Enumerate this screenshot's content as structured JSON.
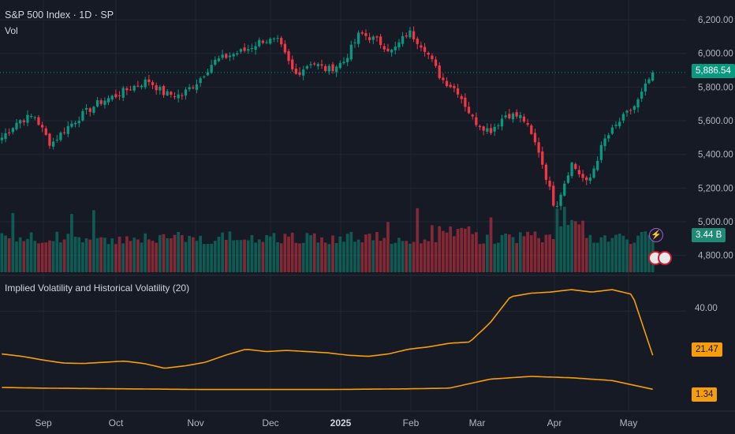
{
  "header": {
    "title": "S&P 500 Index · 1D · SP",
    "volume_label": "Vol",
    "indicator_label": "Implied Volatility and Historical Volatility (20)"
  },
  "price_axis": {
    "ticks": [
      "6,200.00",
      "6,000.00",
      "5,800.00",
      "5,600.00",
      "5,400.00",
      "5,200.00",
      "5,000.00",
      "4,800.00"
    ],
    "current_price": "5,886.54",
    "volume_value": "3.44 B"
  },
  "indicator_axis": {
    "tick": "40.00",
    "iv_value": "21.47",
    "hv_value": "1.34"
  },
  "time_axis": [
    "Sep",
    "Oct",
    "Nov",
    "Dec",
    "2025",
    "Feb",
    "Mar",
    "Apr",
    "May"
  ],
  "colors": {
    "background": "#161a25",
    "up": "#089981",
    "down": "#f23645",
    "line": "#f59d0b",
    "grid": "#232733"
  },
  "chart_data": {
    "type": "candlestick",
    "title": "S&P 500 Index · 1D · SP",
    "ylim": [
      4700,
      6280
    ],
    "anchors": [
      5500,
      5600,
      5630,
      5460,
      5560,
      5640,
      5710,
      5750,
      5800,
      5840,
      5760,
      5750,
      5830,
      5950,
      5990,
      6020,
      6080,
      6070,
      5870,
      5950,
      5900,
      5950,
      6120,
      6080,
      6010,
      6130,
      6030,
      5850,
      5780,
      5600,
      5540,
      5640,
      5620,
      5420,
      5080,
      5350,
      5220,
      5480,
      5600,
      5700,
      5886.54
    ],
    "volume_ylim": [
      0,
      8
    ],
    "volume_last": 3.44,
    "iv_anchors": [
      22,
      21,
      19.5,
      18.2,
      18,
      18.5,
      19,
      18,
      16,
      17,
      18.5,
      21.5,
      24,
      23,
      23.5,
      23,
      22.5,
      21.5,
      21,
      22,
      24,
      25,
      26.5,
      27,
      35,
      46,
      47.5,
      48,
      49,
      48,
      49,
      47,
      21.47
    ],
    "iv_ylim": [
      0,
      52
    ],
    "hv_anchors": [
      1.6,
      1.5,
      1.45,
      1.4,
      1.35,
      1.3,
      1.3,
      1.3,
      1.3,
      1.35,
      1.4,
      1.5,
      2.8,
      3.2,
      3.0,
      2.6,
      1.34
    ]
  }
}
